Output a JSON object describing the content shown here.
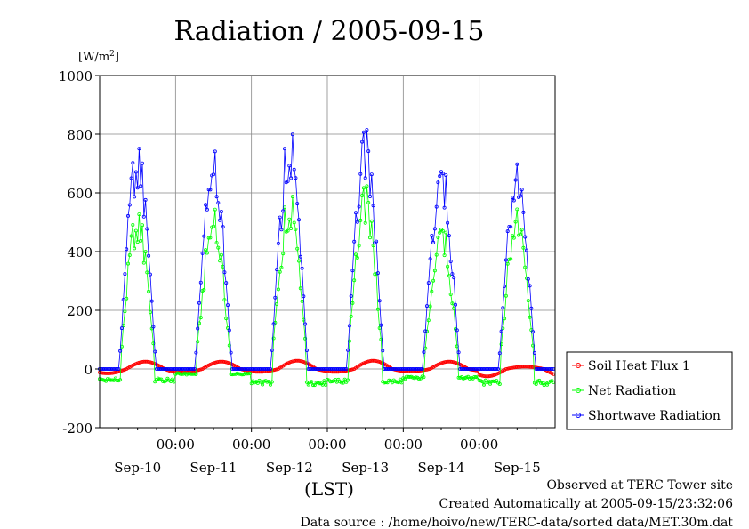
{
  "chart_data": {
    "type": "line",
    "title": "Radiation / 2005-09-15",
    "ylabel": "[W/m2]",
    "ylabel_display": {
      "base": "[W/m",
      "sup": "2",
      "end": "]"
    },
    "xlabel": "(LST)",
    "ylim": [
      -200,
      1000
    ],
    "yticks": [
      -200,
      0,
      200,
      400,
      600,
      800,
      1000
    ],
    "ytick_labels": [
      "-200",
      "0",
      "200",
      "400",
      "600",
      "800",
      "1000"
    ],
    "xlim": [
      0,
      6
    ],
    "xtick_positions": [
      1,
      2,
      3,
      4,
      5
    ],
    "xtick_labels": [
      "00:00",
      "00:00",
      "00:00",
      "00:00",
      "00:00"
    ],
    "day_label_positions": [
      0.5,
      1.5,
      2.5,
      3.5,
      4.5,
      5.5
    ],
    "day_labels": [
      "Sep-10",
      "Sep-11",
      "Sep-12",
      "Sep-13",
      "Sep-14",
      "Sep-15"
    ],
    "grid": true,
    "legend_position": "right",
    "days": [
      {
        "sw_peak": 805,
        "net_peak": 565,
        "soil_peak": 25,
        "soil_min": -15,
        "net_night": -45
      },
      {
        "sw_peak": 750,
        "net_peak": 550,
        "soil_peak": 25,
        "soil_min": -12,
        "net_night": -20
      },
      {
        "sw_peak": 835,
        "net_peak": 615,
        "soil_peak": 28,
        "soil_min": -10,
        "net_night": -55
      },
      {
        "sw_peak": 830,
        "net_peak": 635,
        "soil_peak": 28,
        "soil_min": -10,
        "net_night": -50
      },
      {
        "sw_peak": 750,
        "net_peak": 530,
        "soil_peak": 25,
        "soil_min": -8,
        "net_night": -35
      },
      {
        "sw_peak": 725,
        "net_peak": 565,
        "soil_peak": 8,
        "soil_min": -25,
        "net_night": -55
      }
    ],
    "series": [
      {
        "name": "Soil Heat Flux 1",
        "color": "#ff0000"
      },
      {
        "name": "Net Radiation",
        "color": "#00ff00"
      },
      {
        "name": "Shortwave Radiation",
        "color": "#0000ff"
      }
    ]
  },
  "footer": {
    "line1": "Observed at TERC Tower site",
    "line2": "Created Automatically at 2005-09-15/23:32:06",
    "line3": "Data source : /home/hoivo/new/TERC-data/sorted  data/MET.30m.dat"
  }
}
